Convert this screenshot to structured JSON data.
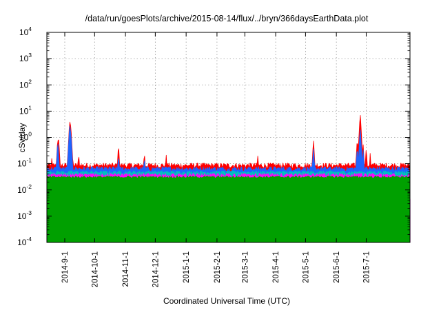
{
  "chart_data": {
    "type": "area",
    "title": "/data/run/goesPlots/archive/2015-08-14/flux/../bryn/366daysEarthData.plot",
    "xlabel": "Coordinated Universal Time (UTC)",
    "ylabel": "cSv/day",
    "yscale": "log",
    "ylim": [
      0.0001,
      10000
    ],
    "xlim": [
      "2014-08-14",
      "2015-08-14"
    ],
    "x_ticks": [
      "2014-9-1",
      "2014-10-1",
      "2014-11-1",
      "2014-12-1",
      "2015-1-1",
      "2015-2-1",
      "2015-3-1",
      "2015-4-1",
      "2015-5-1",
      "2015-6-1",
      "2015-7-1"
    ],
    "y_ticks": [
      {
        "base": "10",
        "exp": "-4",
        "value": 0.0001
      },
      {
        "base": "10",
        "exp": "-3",
        "value": 0.001
      },
      {
        "base": "10",
        "exp": "-2",
        "value": 0.01
      },
      {
        "base": "10",
        "exp": "-1",
        "value": 0.1
      },
      {
        "base": "10",
        "exp": "0",
        "value": 1
      },
      {
        "base": "10",
        "exp": "1",
        "value": 10
      },
      {
        "base": "10",
        "exp": "2",
        "value": 100
      },
      {
        "base": "10",
        "exp": "3",
        "value": 1000
      },
      {
        "base": "10",
        "exp": "4",
        "value": 10000
      }
    ],
    "grid": true,
    "series": [
      {
        "color": "#ff0000",
        "baseline": 0.08,
        "noise": 0.5,
        "peaks": [
          [
            "2014-08-19",
            0.18
          ],
          [
            "2014-08-25",
            1.1
          ],
          [
            "2014-08-26",
            0.9
          ],
          [
            "2014-09-06",
            5.0
          ],
          [
            "2014-09-07",
            3.5
          ],
          [
            "2014-09-15",
            0.28
          ],
          [
            "2014-10-25",
            0.6
          ],
          [
            "2014-11-20",
            0.3
          ],
          [
            "2014-12-12",
            0.22
          ],
          [
            "2015-03-14",
            0.2
          ],
          [
            "2015-05-09",
            0.9
          ],
          [
            "2015-06-22",
            1.0
          ],
          [
            "2015-06-25",
            9.0
          ],
          [
            "2015-06-28",
            0.55
          ],
          [
            "2015-07-01",
            0.45
          ],
          [
            "2015-07-05",
            0.25
          ]
        ]
      },
      {
        "color": "#1e64ff",
        "baseline": 0.06,
        "noise": 0.45,
        "peaks": [
          [
            "2014-08-25",
            0.8
          ],
          [
            "2014-09-06",
            3.5
          ],
          [
            "2014-09-07",
            2.0
          ],
          [
            "2014-10-25",
            0.25
          ],
          [
            "2014-11-20",
            0.2
          ],
          [
            "2015-05-09",
            0.45
          ],
          [
            "2015-06-22",
            0.5
          ],
          [
            "2015-06-25",
            2.5
          ],
          [
            "2015-06-28",
            0.35
          ]
        ]
      },
      {
        "color": "#00c0c0",
        "baseline": 0.045,
        "noise": 0.3,
        "peaks": []
      },
      {
        "color": "#ff00ff",
        "baseline": 0.035,
        "noise": 0.35,
        "peaks": [],
        "dropouts_to": 0.004
      },
      {
        "color": "#00a000",
        "baseline": 0.03,
        "noise": 0.2,
        "peaks": []
      }
    ]
  }
}
